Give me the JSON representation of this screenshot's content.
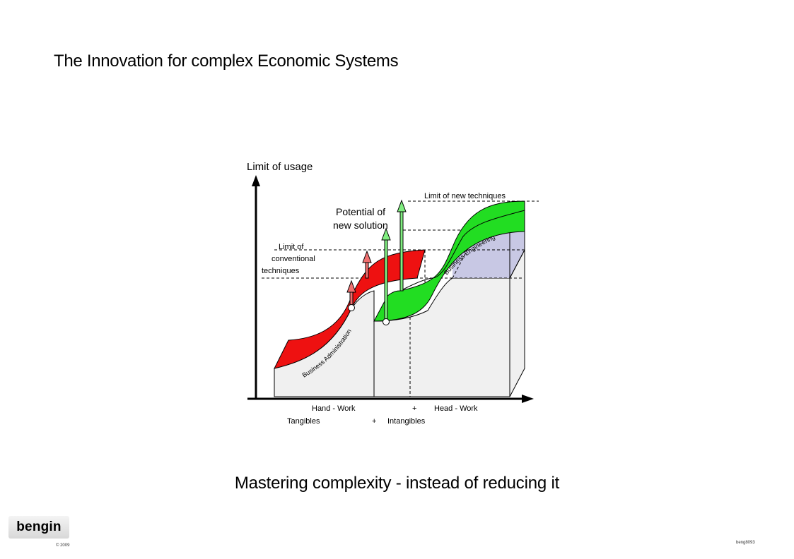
{
  "page": {
    "title": "The Innovation for complex Economic Systems",
    "subtitle": "Mastering complexity - instead of reducing it",
    "logo": "bengin",
    "copyright": "© 2009",
    "footer_code": "beng8093"
  },
  "diagram": {
    "y_axis_label": "Limit of usage",
    "limit_new": "Limit of new techniques",
    "potential_line1": "Potential of",
    "potential_line2": "new solution",
    "limit_conv_line1": "Limit of",
    "limit_conv_line2": "conventional",
    "limit_conv_line3": "techniques",
    "curve_label_left": "Business Administration",
    "curve_label_right": "Business Engineering",
    "x_label_hand_work": "Hand - Work",
    "x_label_plus1": "+",
    "x_label_head_work": "Head - Work",
    "x_label_tangibles": "Tangibles",
    "x_label_plus2": "+",
    "x_label_intangibles": "Intangibles",
    "colors": {
      "red": "#ee1111",
      "green": "#22dd22",
      "lavender": "#c8c8e4",
      "box_fill": "#f0f0f0",
      "arrow_red": "#f07070",
      "arrow_green": "#80ee80"
    }
  }
}
